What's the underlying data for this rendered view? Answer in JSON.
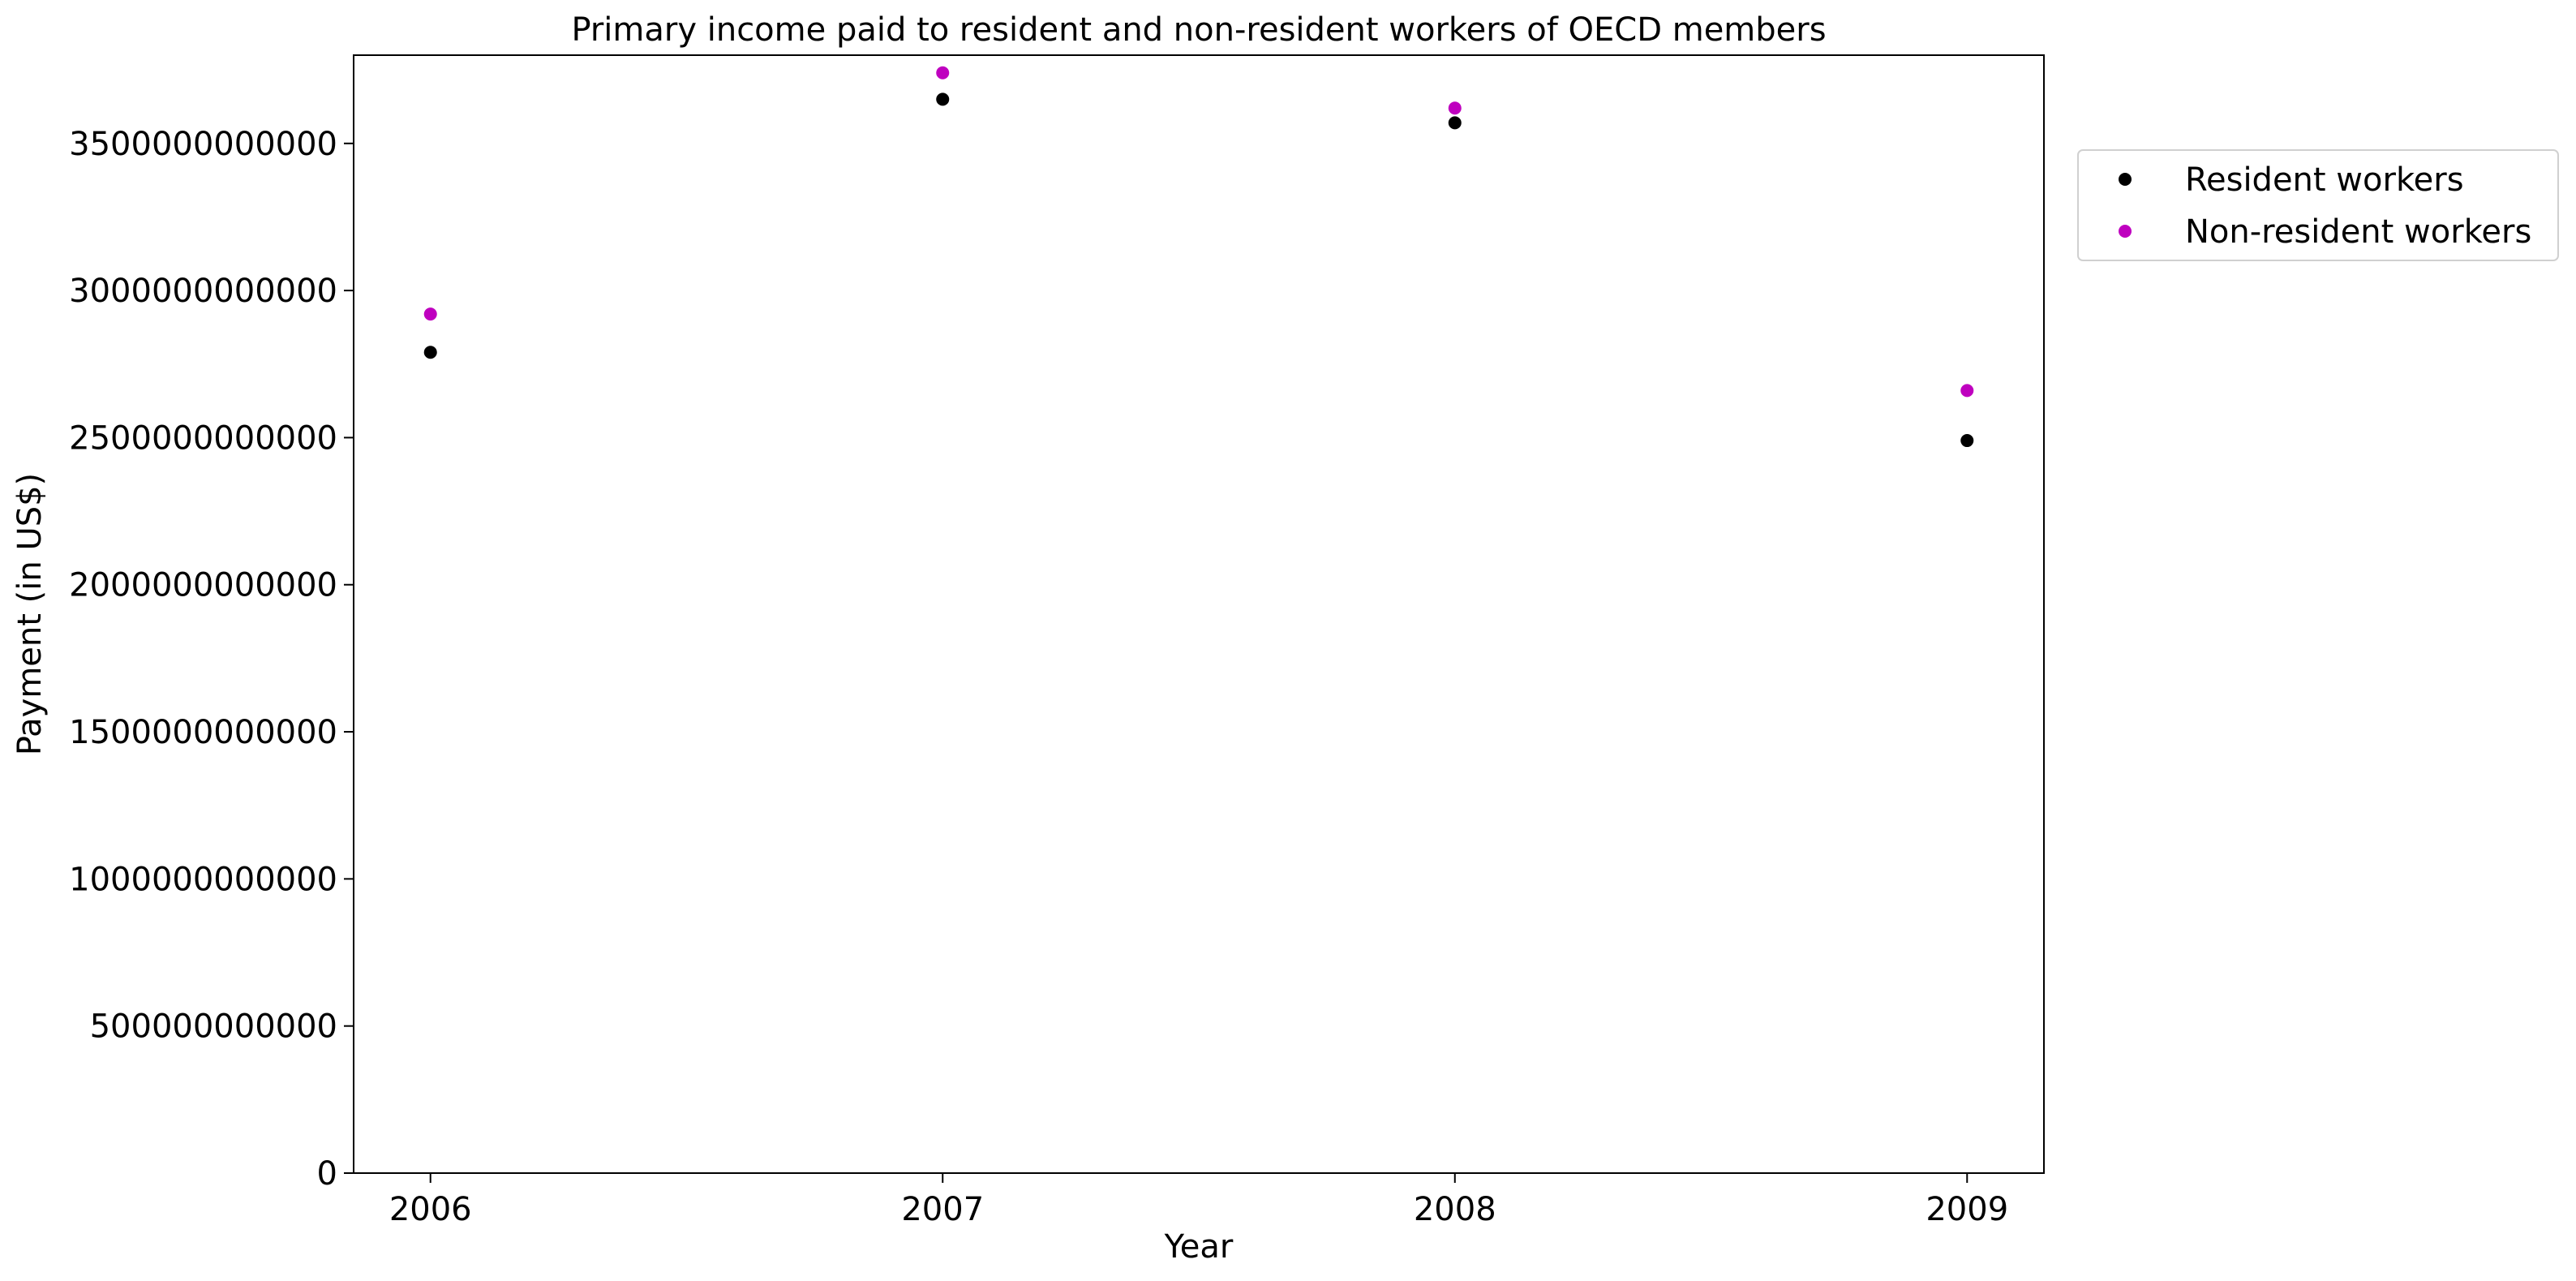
{
  "chart_data": {
    "type": "scatter",
    "title": "Primary income paid to resident and non-resident workers of OECD members",
    "xlabel": "Year",
    "ylabel": "Payment (in US$)",
    "x": [
      "2006",
      "2007",
      "2008",
      "2009"
    ],
    "xlim": [
      2005.85,
      2009.15
    ],
    "ylim": [
      0,
      3800000000000
    ],
    "yticks": [
      0,
      500000000000,
      1000000000000,
      1500000000000,
      2000000000000,
      2500000000000,
      3000000000000,
      3500000000000
    ],
    "ytick_labels": [
      "0",
      "500000000000",
      "1000000000000",
      "1500000000000",
      "2000000000000",
      "2500000000000",
      "3000000000000",
      "3500000000000"
    ],
    "series": [
      {
        "name": "Resident workers",
        "color": "#000000",
        "values": [
          2790000000000,
          3650000000000,
          3570000000000,
          2490000000000
        ]
      },
      {
        "name": "Non-resident workers",
        "color": "#bf00bf",
        "values": [
          2920000000000,
          3740000000000,
          3620000000000,
          2660000000000
        ]
      }
    ],
    "grid": false,
    "legend_position": "outside-right-top"
  }
}
